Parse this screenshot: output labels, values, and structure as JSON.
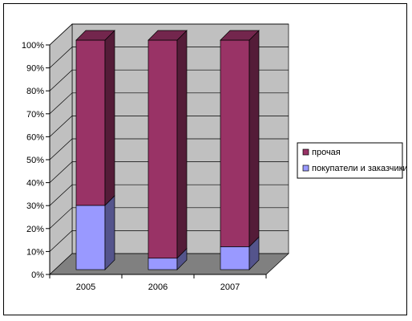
{
  "chart_data": {
    "type": "bar",
    "stacked": true,
    "percent_stacked": true,
    "three_d": true,
    "categories": [
      "2005",
      "2006",
      "2007"
    ],
    "series": [
      {
        "name": "покупатели и заказчики",
        "values": [
          28,
          5,
          10
        ],
        "color": "#9999ff"
      },
      {
        "name": "прочая",
        "values": [
          72,
          95,
          90
        ],
        "color": "#993366"
      }
    ],
    "y_ticks": [
      "0%",
      "10%",
      "20%",
      "30%",
      "40%",
      "50%",
      "60%",
      "70%",
      "80%",
      "90%",
      "100%"
    ],
    "ylim": [
      0,
      100
    ],
    "grid": true,
    "legend_position": "right",
    "wall_color": "#c0c0c0",
    "floor_color": "#808080"
  }
}
